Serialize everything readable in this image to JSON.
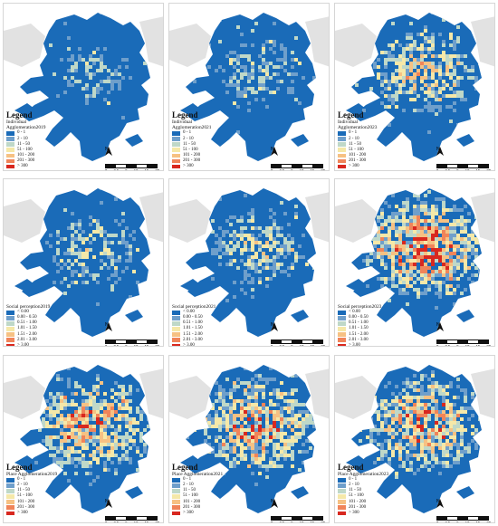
{
  "map_style": {
    "colors": [
      "#1a6bb8",
      "#6f9fcb",
      "#bfd8c8",
      "#f5e8a8",
      "#f6c183",
      "#f08459",
      "#d8281f"
    ],
    "land_color": "#1a6bb8",
    "background_color": "#e2e2e2"
  },
  "north_label": "N",
  "scale": {
    "ticks": [
      "0",
      "2.5",
      "5",
      "10",
      "15",
      "20"
    ],
    "unit": ""
  },
  "panels": [
    {
      "row": 0,
      "col": 0,
      "intensity": 0.35,
      "legend_title": "Legend",
      "legend_subtitle": "Individual",
      "legend_subtitle2": "Agglomeration2019",
      "classes": [
        "0 - 1",
        "2 - 10",
        "11 - 50",
        "51 - 100",
        "101 - 200",
        "201 - 300",
        "> 300"
      ]
    },
    {
      "row": 0,
      "col": 1,
      "intensity": 0.38,
      "legend_title": "Legend",
      "legend_subtitle": "Individual",
      "legend_subtitle2": "Agglomeration2021",
      "classes": [
        "0 - 1",
        "2 - 10",
        "11 - 50",
        "51 - 100",
        "101 - 200",
        "201 - 300",
        "> 300"
      ]
    },
    {
      "row": 0,
      "col": 2,
      "intensity": 0.6,
      "legend_title": "Legend",
      "legend_subtitle": "Individual",
      "legend_subtitle2": "Agglomeration2023",
      "classes": [
        "0 - 1",
        "2 - 10",
        "11 - 50",
        "51 - 100",
        "101 - 200",
        "201 - 300",
        "> 300"
      ]
    },
    {
      "row": 1,
      "col": 0,
      "intensity": 0.45,
      "legend_title": "",
      "legend_subtitle": "Social perception2019",
      "legend_subtitle2": "",
      "classes": [
        "< 0.00",
        "0.00 - 0.50",
        "0.51 - 1.00",
        "1.01 - 1.50",
        "1.51 - 2.00",
        "2.01 - 3.00",
        "> 3.00"
      ]
    },
    {
      "row": 1,
      "col": 1,
      "intensity": 0.48,
      "legend_title": "",
      "legend_subtitle": "Social perception2021",
      "legend_subtitle2": "",
      "classes": [
        "< 0.00",
        "0.00 - 0.50",
        "0.51 - 1.00",
        "1.01 - 1.50",
        "1.51 - 2.00",
        "2.01 - 3.00",
        "> 3.00"
      ]
    },
    {
      "row": 1,
      "col": 2,
      "intensity": 0.95,
      "legend_title": "",
      "legend_subtitle": "Social perception2023",
      "legend_subtitle2": "",
      "classes": [
        "< 0.00",
        "0.00 - 0.50",
        "0.51 - 1.00",
        "1.01 - 1.50",
        "1.51 - 2.00",
        "2.01 - 3.00",
        "> 3.00"
      ]
    },
    {
      "row": 2,
      "col": 0,
      "intensity": 0.8,
      "legend_title": "Legend",
      "legend_subtitle": "Place Agglomeration2019",
      "legend_subtitle2": "",
      "classes": [
        "0 - 1",
        "2 - 10",
        "11 - 50",
        "51 - 100",
        "101 - 200",
        "201 - 300",
        "> 300"
      ]
    },
    {
      "row": 2,
      "col": 1,
      "intensity": 0.82,
      "legend_title": "Legend",
      "legend_subtitle": "Place Agglomeration2021",
      "legend_subtitle2": "",
      "classes": [
        "0 - 1",
        "2 - 10",
        "11 - 50",
        "51 - 100",
        "101 - 200",
        "201 - 300",
        "> 300"
      ]
    },
    {
      "row": 2,
      "col": 2,
      "intensity": 0.82,
      "legend_title": "Legend",
      "legend_subtitle": "Place Agglomeration2023",
      "legend_subtitle2": "",
      "classes": [
        "0 - 1",
        "2 - 10",
        "11 - 50",
        "51 - 100",
        "101 - 200",
        "201 - 300",
        "> 300"
      ]
    }
  ]
}
